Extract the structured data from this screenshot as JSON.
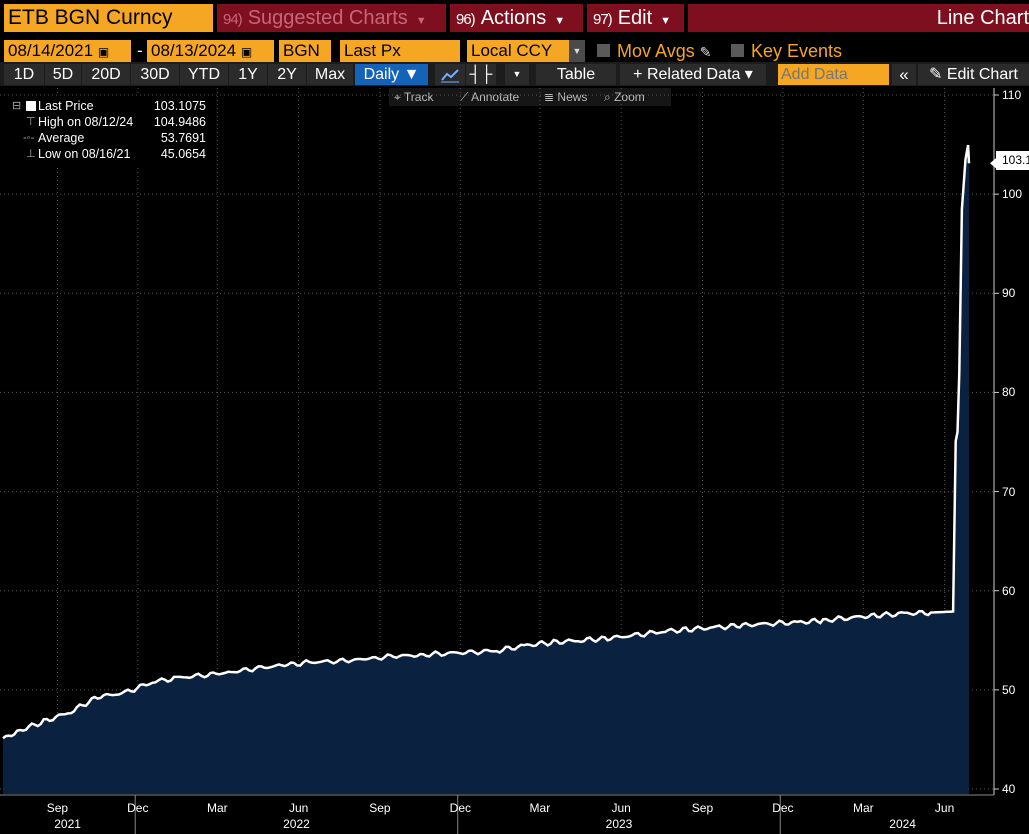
{
  "header": {
    "ticker": "ETB BGN Curncy",
    "suggested_num": "94)",
    "suggested_label": "Suggested Charts",
    "actions_num": "96)",
    "actions_label": "Actions",
    "edit_num": "97)",
    "edit_label": "Edit",
    "chart_type": "Line Chart"
  },
  "controls": {
    "start_date": "08/14/2021",
    "end_date": "08/13/2024",
    "currency_code": "BGN",
    "field": "Last Px",
    "ccy": "Local CCY",
    "mov_avgs": "Mov Avgs",
    "key_events": "Key Events"
  },
  "toolbar": {
    "periods": [
      "1D",
      "5D",
      "20D",
      "30D",
      "YTD",
      "1Y",
      "2Y",
      "Max"
    ],
    "frequency": "Daily ▼",
    "table": "Table",
    "related_data": "+ Related Data ▾",
    "add_data_placeholder": "Add Data",
    "edit_chart": "Edit Chart"
  },
  "tools": {
    "track": "Track",
    "annotate": "Annotate",
    "news": "News",
    "zoom": "Zoom"
  },
  "legend": {
    "last_label": "Last Price",
    "last_value": "103.1075",
    "high_label": "High on 08/12/24",
    "high_value": "104.9486",
    "avg_label": "Average",
    "avg_value": "53.7691",
    "low_label": "Low on 08/16/21",
    "low_value": "45.0654"
  },
  "last_badge": "103.1",
  "colors": {
    "accent_orange": "#f5a623",
    "header_red": "#7e0f1f",
    "area_fill": "#0b2140",
    "line": "#ffffff",
    "active_blue": "#1563b8"
  },
  "chart_data": {
    "type": "area",
    "title": "",
    "xlabel": "",
    "ylabel": "",
    "ylim": [
      40,
      110
    ],
    "yticks": [
      40,
      50,
      60,
      70,
      80,
      90,
      100,
      110
    ],
    "month_ticks": [
      "Sep",
      "Dec",
      "Mar",
      "Jun",
      "Sep",
      "Dec",
      "Mar",
      "Jun",
      "Sep",
      "Dec",
      "Mar",
      "Jun"
    ],
    "year_ticks": [
      "2021",
      "2022",
      "2023",
      "2024"
    ],
    "grid": true,
    "series": [
      {
        "x": [
          "2021-08-16",
          "2021-09-01",
          "2021-10-01",
          "2021-11-01",
          "2021-12-01",
          "2022-01-01",
          "2022-02-01",
          "2022-03-01",
          "2022-04-01",
          "2022-05-01",
          "2022-06-01",
          "2022-07-01",
          "2022-08-01",
          "2022-09-01",
          "2022-10-01",
          "2022-11-01",
          "2022-12-01",
          "2023-01-01",
          "2023-02-01",
          "2023-03-01",
          "2023-04-01",
          "2023-05-01",
          "2023-06-01",
          "2023-07-01",
          "2023-08-01",
          "2023-09-01",
          "2023-10-01",
          "2023-11-01",
          "2023-12-01",
          "2024-01-01",
          "2024-02-01",
          "2024-03-01",
          "2024-04-01",
          "2024-05-01",
          "2024-06-01",
          "2024-07-01",
          "2024-07-26",
          "2024-07-29",
          "2024-07-31",
          "2024-08-02",
          "2024-08-05",
          "2024-08-07",
          "2024-08-09",
          "2024-08-12",
          "2024-08-13"
        ],
        "values": [
          45.07,
          45.8,
          46.8,
          47.8,
          49.3,
          49.7,
          50.8,
          51.2,
          51.5,
          51.8,
          52.2,
          52.5,
          52.8,
          52.9,
          53.1,
          53.4,
          53.5,
          53.7,
          53.8,
          54.0,
          54.5,
          54.8,
          55.0,
          55.2,
          55.5,
          55.9,
          56.1,
          56.3,
          56.5,
          56.7,
          56.8,
          57.0,
          57.3,
          57.5,
          57.7,
          57.8,
          57.9,
          75.1,
          76.0,
          82.0,
          98.5,
          101.0,
          103.5,
          104.95,
          103.11
        ]
      }
    ]
  }
}
